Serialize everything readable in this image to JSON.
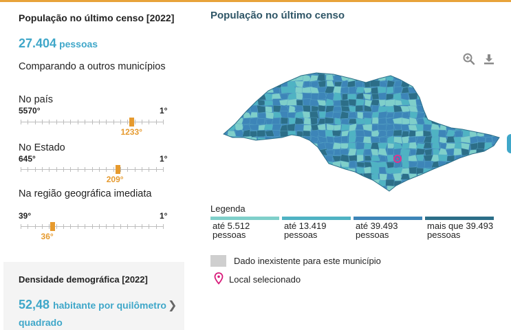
{
  "population": {
    "title": "População no último censo [2022]",
    "value": "27.404",
    "unit": "pessoas"
  },
  "compare_heading": "Comparando a outros municípios",
  "rankings": [
    {
      "label": "No país",
      "max": "5570°",
      "min": "1°",
      "current": "1233°",
      "position_fraction": 0.78
    },
    {
      "label": "No Estado",
      "max": "645°",
      "min": "1°",
      "current": "209°",
      "position_fraction": 0.68
    },
    {
      "label": "Na região geográfica imediata",
      "max": "39°",
      "min": "1°",
      "current": "36°",
      "position_fraction": 0.22
    }
  ],
  "density": {
    "title": "Densidade demográfica [2022]",
    "value": "52,48",
    "unit": "habitante por quilômetro quadrado"
  },
  "map": {
    "title": "População no último censo",
    "zoom_icon": "zoom-in-icon",
    "download_icon": "download-icon"
  },
  "legend": {
    "title": "Legenda",
    "items": [
      {
        "label": "até 5.512 pessoas",
        "color": "#7fcfca"
      },
      {
        "label": "até 13.419 pessoas",
        "color": "#4fb3c3"
      },
      {
        "label": "até 39.493 pessoas",
        "color": "#3d85b8"
      },
      {
        "label": "mais que 39.493 pessoas",
        "color": "#2c6e88"
      }
    ],
    "no_data": "Dado inexistente para este município",
    "selected": "Local selecionado"
  },
  "colors": {
    "accent": "#3fa7c9",
    "rank_marker": "#e69a2e",
    "title_dark": "#2e5566"
  }
}
